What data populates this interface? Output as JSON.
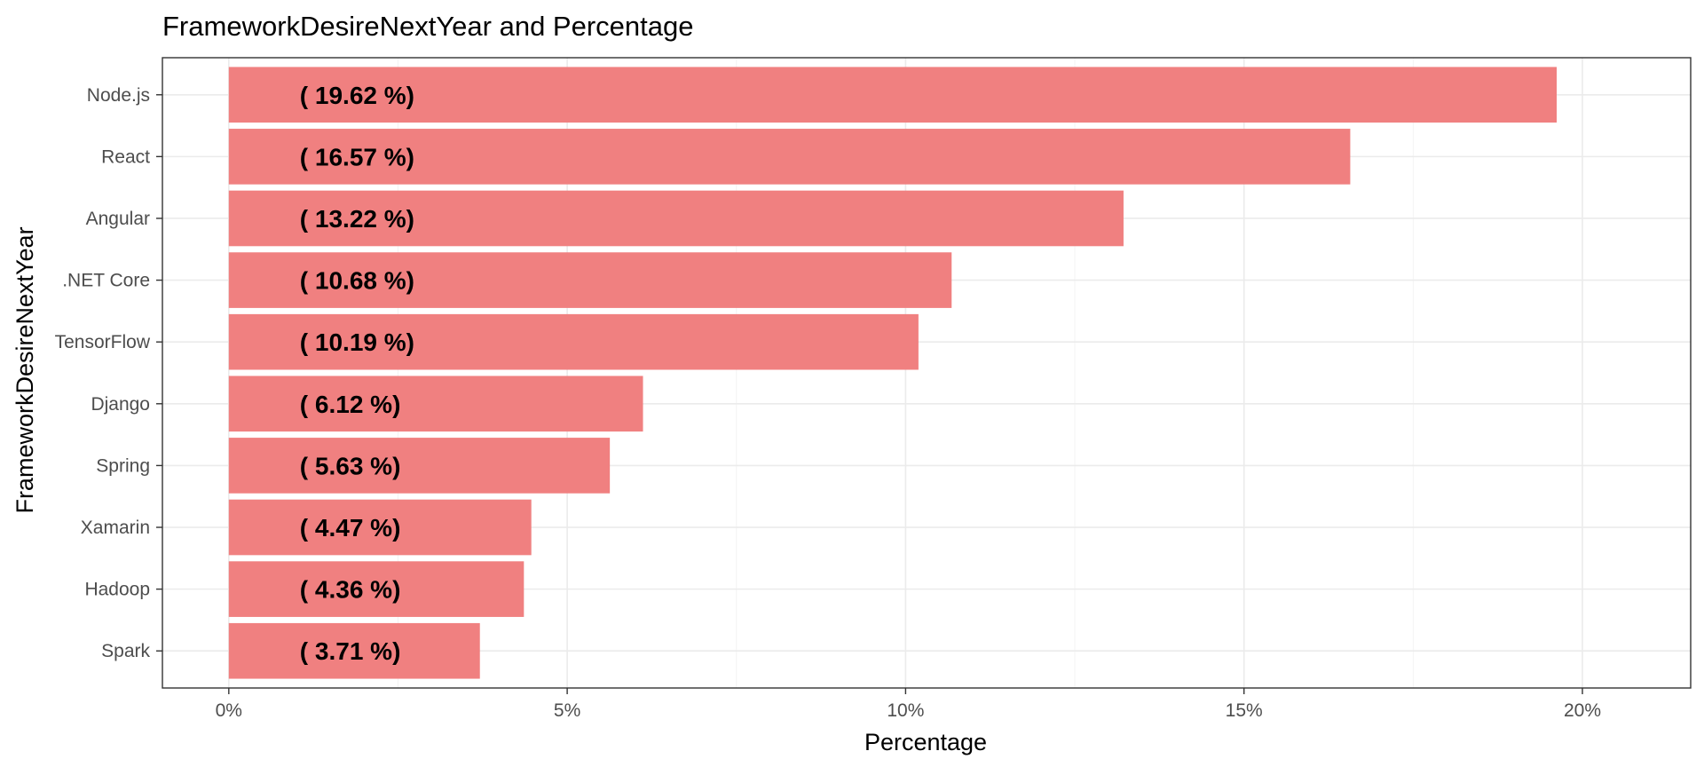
{
  "chart_data": {
    "type": "bar",
    "orientation": "horizontal",
    "title": "FrameworkDesireNextYear and Percentage",
    "xlabel": "Percentage",
    "ylabel": "FrameworkDesireNextYear",
    "categories": [
      "Node.js",
      "React",
      "Angular",
      ".NET Core",
      "TensorFlow",
      "Django",
      "Spring",
      "Xamarin",
      "Hadoop",
      "Spark"
    ],
    "values": [
      19.62,
      16.57,
      13.22,
      10.68,
      10.19,
      6.12,
      5.63,
      4.47,
      4.36,
      3.71
    ],
    "data_labels": [
      "( 19.62 %)",
      "( 16.57 %)",
      "( 13.22 %)",
      "( 10.68 %)",
      "( 10.19 %)",
      "( 6.12 %)",
      "( 5.63 %)",
      "( 4.47 %)",
      "( 4.36 %)",
      "( 3.71 %)"
    ],
    "xticks": [
      0,
      5,
      10,
      15,
      20
    ],
    "xtick_labels": [
      "0%",
      "5%",
      "10%",
      "15%",
      "20%"
    ],
    "xlim": [
      -0.981,
      21.6
    ],
    "bar_color": "#F08080",
    "grid": true,
    "legend": "none"
  }
}
